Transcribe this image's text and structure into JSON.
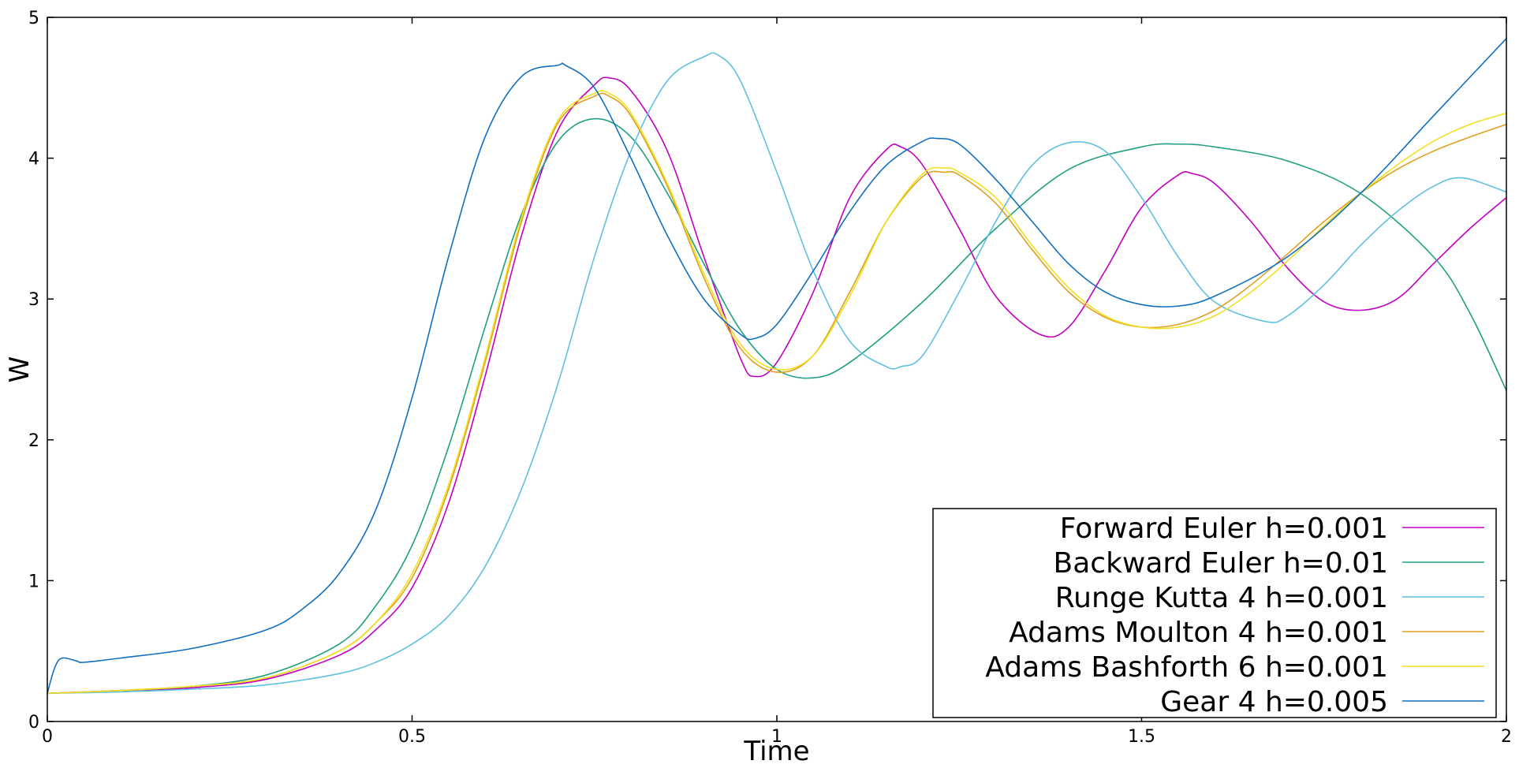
{
  "chart_data": {
    "type": "line",
    "xlabel": "Time",
    "ylabel": "W",
    "xlim": [
      0,
      2
    ],
    "ylim": [
      0,
      5
    ],
    "xticks": [
      0,
      0.5,
      1,
      1.5,
      2
    ],
    "xtick_labels": [
      "0",
      "0.5",
      "1",
      "1.5",
      "2"
    ],
    "yticks": [
      0,
      1,
      2,
      3,
      4,
      5
    ],
    "ytick_labels": [
      "0",
      "1",
      "2",
      "3",
      "4",
      "5"
    ],
    "grid": false,
    "legend_position": "lower-right",
    "series": [
      {
        "name": "Forward Euler h=0.001",
        "color": "#c000c0",
        "x": [
          0,
          0.1,
          0.2,
          0.3,
          0.4,
          0.45,
          0.5,
          0.55,
          0.6,
          0.65,
          0.7,
          0.75,
          0.77,
          0.8,
          0.85,
          0.9,
          0.95,
          0.97,
          1.0,
          1.05,
          1.1,
          1.15,
          1.17,
          1.2,
          1.25,
          1.3,
          1.36,
          1.4,
          1.45,
          1.5,
          1.55,
          1.57,
          1.6,
          1.65,
          1.7,
          1.75,
          1.8,
          1.85,
          1.9,
          1.95,
          2.0
        ],
        "y": [
          0.2,
          0.22,
          0.24,
          0.3,
          0.47,
          0.65,
          0.95,
          1.55,
          2.45,
          3.45,
          4.2,
          4.52,
          4.57,
          4.48,
          4.05,
          3.3,
          2.58,
          2.45,
          2.55,
          3.05,
          3.72,
          4.06,
          4.08,
          3.95,
          3.5,
          3.02,
          2.75,
          2.8,
          3.2,
          3.65,
          3.88,
          3.89,
          3.82,
          3.55,
          3.22,
          2.98,
          2.92,
          3.0,
          3.25,
          3.5,
          3.72
        ]
      },
      {
        "name": "Backward Euler h=0.01",
        "color": "#20a080",
        "x": [
          0,
          0.1,
          0.2,
          0.3,
          0.4,
          0.45,
          0.5,
          0.55,
          0.6,
          0.65,
          0.7,
          0.75,
          0.8,
          0.85,
          0.9,
          0.95,
          1.0,
          1.05,
          1.1,
          1.2,
          1.3,
          1.4,
          1.5,
          1.55,
          1.6,
          1.7,
          1.8,
          1.9,
          1.95,
          2.0
        ],
        "y": [
          0.2,
          0.22,
          0.25,
          0.33,
          0.55,
          0.82,
          1.25,
          1.95,
          2.8,
          3.6,
          4.12,
          4.28,
          4.15,
          3.75,
          3.25,
          2.78,
          2.5,
          2.44,
          2.55,
          2.98,
          3.5,
          3.92,
          4.08,
          4.1,
          4.08,
          3.98,
          3.75,
          3.3,
          2.9,
          2.35
        ]
      },
      {
        "name": "Runge Kutta 4 h=0.001",
        "color": "#60c0e0",
        "x": [
          0,
          0.1,
          0.2,
          0.3,
          0.4,
          0.45,
          0.5,
          0.55,
          0.6,
          0.65,
          0.7,
          0.75,
          0.8,
          0.85,
          0.9,
          0.92,
          0.95,
          1.0,
          1.05,
          1.1,
          1.15,
          1.17,
          1.2,
          1.25,
          1.3,
          1.35,
          1.4,
          1.45,
          1.5,
          1.55,
          1.6,
          1.67,
          1.7,
          1.75,
          1.8,
          1.85,
          1.9,
          1.94,
          2.0
        ],
        "y": [
          0.2,
          0.21,
          0.23,
          0.26,
          0.34,
          0.42,
          0.55,
          0.75,
          1.1,
          1.65,
          2.4,
          3.3,
          4.05,
          4.55,
          4.72,
          4.73,
          4.55,
          3.9,
          3.2,
          2.7,
          2.52,
          2.52,
          2.6,
          3.05,
          3.55,
          3.95,
          4.11,
          4.05,
          3.72,
          3.3,
          2.98,
          2.84,
          2.88,
          3.1,
          3.38,
          3.62,
          3.8,
          3.86,
          3.76
        ]
      },
      {
        "name": "Adams Moulton 4 h=0.001",
        "color": "#e0a020",
        "x": [
          0,
          0.1,
          0.2,
          0.3,
          0.4,
          0.45,
          0.5,
          0.55,
          0.6,
          0.65,
          0.7,
          0.75,
          0.77,
          0.8,
          0.85,
          0.9,
          0.95,
          1.0,
          1.05,
          1.1,
          1.15,
          1.2,
          1.23,
          1.25,
          1.3,
          1.35,
          1.4,
          1.45,
          1.5,
          1.55,
          1.6,
          1.65,
          1.7,
          1.75,
          1.8,
          1.85,
          1.9,
          1.95,
          2.0
        ],
        "y": [
          0.2,
          0.22,
          0.25,
          0.31,
          0.5,
          0.7,
          1.02,
          1.65,
          2.55,
          3.55,
          4.25,
          4.44,
          4.44,
          4.3,
          3.8,
          3.15,
          2.65,
          2.48,
          2.6,
          3.05,
          3.55,
          3.87,
          3.9,
          3.88,
          3.68,
          3.35,
          3.05,
          2.87,
          2.8,
          2.82,
          2.92,
          3.1,
          3.32,
          3.55,
          3.75,
          3.92,
          4.05,
          4.15,
          4.24
        ]
      },
      {
        "name": "Adams Bashforth 6 h=0.001",
        "color": "#f0e020",
        "x": [
          0,
          0.1,
          0.2,
          0.3,
          0.4,
          0.45,
          0.5,
          0.55,
          0.6,
          0.65,
          0.7,
          0.75,
          0.77,
          0.8,
          0.85,
          0.9,
          0.95,
          1.0,
          1.05,
          1.1,
          1.15,
          1.2,
          1.23,
          1.25,
          1.3,
          1.35,
          1.4,
          1.45,
          1.5,
          1.55,
          1.6,
          1.65,
          1.7,
          1.75,
          1.8,
          1.85,
          1.9,
          1.95,
          2.0
        ],
        "y": [
          0.2,
          0.22,
          0.25,
          0.31,
          0.5,
          0.7,
          1.05,
          1.68,
          2.58,
          3.58,
          4.27,
          4.46,
          4.46,
          4.32,
          3.82,
          3.18,
          2.68,
          2.5,
          2.6,
          3.02,
          3.55,
          3.89,
          3.93,
          3.9,
          3.72,
          3.38,
          3.08,
          2.88,
          2.8,
          2.8,
          2.88,
          3.05,
          3.27,
          3.52,
          3.75,
          3.95,
          4.12,
          4.24,
          4.32
        ]
      },
      {
        "name": "Gear 4 h=0.005",
        "color": "#1070c0",
        "x": [
          0,
          0.01,
          0.02,
          0.04,
          0.05,
          0.1,
          0.2,
          0.3,
          0.35,
          0.4,
          0.45,
          0.5,
          0.55,
          0.6,
          0.65,
          0.7,
          0.71,
          0.75,
          0.8,
          0.85,
          0.9,
          0.95,
          0.97,
          1.0,
          1.05,
          1.1,
          1.15,
          1.2,
          1.22,
          1.25,
          1.3,
          1.35,
          1.4,
          1.45,
          1.5,
          1.55,
          1.6,
          1.7,
          1.8,
          1.9,
          2.0
        ],
        "y": [
          0.2,
          0.38,
          0.45,
          0.43,
          0.42,
          0.45,
          0.52,
          0.65,
          0.8,
          1.05,
          1.5,
          2.3,
          3.3,
          4.15,
          4.58,
          4.66,
          4.66,
          4.5,
          4.0,
          3.45,
          3.0,
          2.75,
          2.72,
          2.82,
          3.2,
          3.62,
          3.95,
          4.12,
          4.14,
          4.1,
          3.85,
          3.55,
          3.25,
          3.05,
          2.96,
          2.95,
          3.02,
          3.3,
          3.75,
          4.3,
          4.85
        ]
      }
    ]
  }
}
